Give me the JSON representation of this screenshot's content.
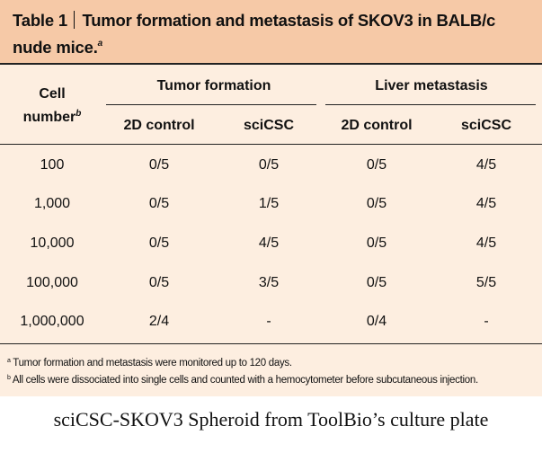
{
  "table": {
    "title_label": "Table 1",
    "title_text": "Tumor formation and metastasis of SKOV3 in BALB/c nude mice.",
    "title_mark": "a",
    "header": {
      "cell_number_line1": "Cell",
      "cell_number_line2": "number",
      "cell_number_mark": "b",
      "group1": "Tumor formation",
      "group2": "Liver metastasis",
      "sub1": "2D control",
      "sub2": "sciCSC",
      "sub3": "2D control",
      "sub4": "sciCSC"
    },
    "rows": [
      [
        "100",
        "0/5",
        "0/5",
        "0/5",
        "4/5"
      ],
      [
        "1,000",
        "0/5",
        "1/5",
        "0/5",
        "4/5"
      ],
      [
        "10,000",
        "0/5",
        "4/5",
        "0/5",
        "4/5"
      ],
      [
        "100,000",
        "0/5",
        "3/5",
        "0/5",
        "5/5"
      ],
      [
        "1,000,000",
        "2/4",
        "-",
        "0/4",
        "-"
      ]
    ],
    "footnotes": [
      {
        "mark": "a",
        "text": " Tumor formation and metastasis were monitored up to 120 days."
      },
      {
        "mark": "b",
        "text": " All cells were dissociated into single cells and counted with a hemocytometer before subcutaneous injection."
      }
    ]
  },
  "caption": "sciCSC-SKOV3 Spheroid from ToolBio’s culture plate",
  "colors": {
    "title_bg": "#f6c9a7",
    "panel_bg": "#fdeee0"
  }
}
